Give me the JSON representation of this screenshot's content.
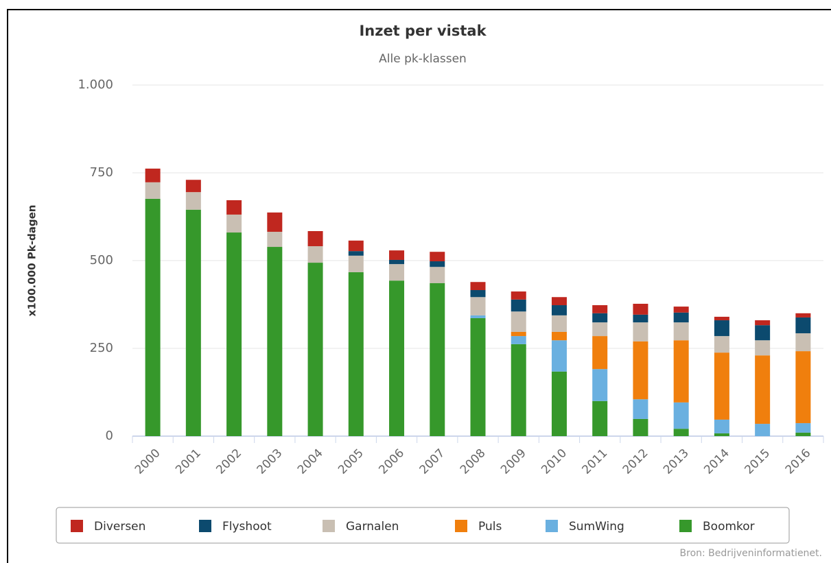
{
  "chart_data": {
    "type": "stacked-bar",
    "title": "Inzet per vistak",
    "subtitle": "Alle pk-klassen",
    "y_axis_label": "x100.000 Pk-dagen",
    "source": "Bron: Bedrijveninformatienet.",
    "categories": [
      "2000",
      "2001",
      "2002",
      "2003",
      "2004",
      "2005",
      "2006",
      "2007",
      "2008",
      "2009",
      "2010",
      "2011",
      "2012",
      "2013",
      "2014",
      "2015",
      "2016"
    ],
    "series": [
      {
        "name": "Diversen",
        "color": "#c0271f",
        "values": [
          39,
          35,
          41,
          55,
          43,
          30,
          27,
          27,
          23,
          23,
          23,
          23,
          31,
          17,
          10,
          14,
          12
        ]
      },
      {
        "name": "Flyshoot",
        "color": "#0c4a6e",
        "values": [
          0,
          0,
          0,
          0,
          0,
          13,
          12,
          16,
          20,
          34,
          29,
          26,
          22,
          28,
          45,
          43,
          45
        ]
      },
      {
        "name": "Garnalen",
        "color": "#c9bfb3",
        "values": [
          47,
          50,
          51,
          43,
          47,
          47,
          47,
          46,
          52,
          58,
          47,
          39,
          54,
          51,
          47,
          43,
          51
        ]
      },
      {
        "name": "Puls",
        "color": "#f07f0d",
        "values": [
          0,
          0,
          0,
          0,
          0,
          0,
          0,
          0,
          0,
          12,
          24,
          94,
          165,
          177,
          191,
          195,
          205
        ]
      },
      {
        "name": "SumWing",
        "color": "#6ab0e0",
        "values": [
          0,
          0,
          0,
          0,
          0,
          0,
          0,
          0,
          8,
          23,
          89,
          91,
          56,
          75,
          39,
          35,
          27
        ]
      },
      {
        "name": "Boomkor",
        "color": "#36982b",
        "values": [
          676,
          645,
          580,
          539,
          494,
          467,
          443,
          436,
          336,
          262,
          184,
          100,
          49,
          21,
          8,
          0,
          10
        ]
      }
    ],
    "ylim": [
      0,
      1000
    ],
    "yticks": [
      0,
      250,
      500,
      750,
      {
        "value": 1000,
        "label": "1.000"
      }
    ],
    "grid": true
  }
}
